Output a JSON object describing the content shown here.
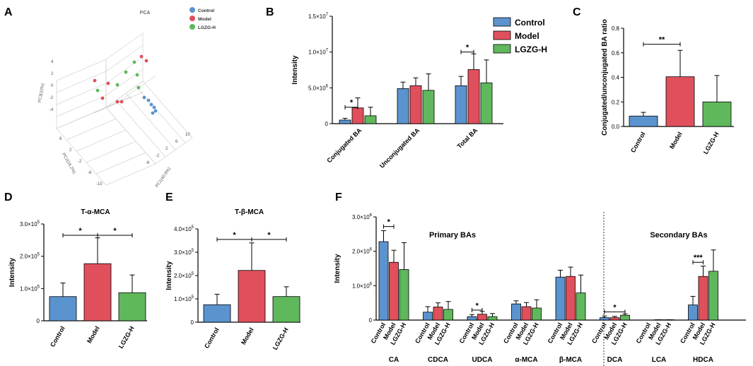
{
  "colors": {
    "control": "#5b93cf",
    "model": "#e0505c",
    "lgzg": "#5fb85c"
  },
  "panels": {
    "a": {
      "letter": "A"
    },
    "b": {
      "letter": "B"
    },
    "c": {
      "letter": "C"
    },
    "d": {
      "letter": "D"
    },
    "e": {
      "letter": "E"
    },
    "f": {
      "letter": "F"
    }
  },
  "pca": {
    "title": "PCA",
    "legend": [
      "Control",
      "Model",
      "LGZG-H"
    ],
    "axis_labels": [
      "PC3(10%)",
      "PC2(16.2%)",
      "PC1(40.9%)"
    ],
    "tick_labels": [
      "4",
      "2",
      "0",
      "-2",
      "-4",
      "6",
      "2",
      "-2",
      "-6",
      "-10",
      "-6",
      "-2",
      "2",
      "6",
      "10"
    ]
  },
  "chart_data": [
    {
      "id": "B",
      "type": "bar",
      "ylabel": "Intensity",
      "ylim": [
        0,
        15000000
      ],
      "yticks": [
        {
          "v": 0,
          "m": "0",
          "e": ""
        },
        {
          "v": 5000000,
          "m": "5.0×10",
          "e": "6"
        },
        {
          "v": 10000000,
          "m": "1.0×10",
          "e": "7"
        },
        {
          "v": 15000000,
          "m": "1.5×10",
          "e": "7"
        }
      ],
      "legend": [
        "Control",
        "Model",
        "LGZG-H"
      ],
      "groups": [
        {
          "label": "Conjugated BA",
          "mean": [
            500000,
            2200000,
            1100000
          ],
          "err": [
            250000,
            1400000,
            1200000
          ]
        },
        {
          "label": "Unconjugated BA",
          "mean": [
            4900000,
            5300000,
            4650000
          ],
          "err": [
            900000,
            1100000,
            2300000
          ]
        },
        {
          "label": "Total BA",
          "mean": [
            5300000,
            7550000,
            5700000
          ],
          "err": [
            1300000,
            2200000,
            3200000
          ]
        }
      ],
      "sig": [
        {
          "group": 0,
          "from": 0,
          "to": 1,
          "level": 2300000,
          "label": "*"
        },
        {
          "group": 2,
          "from": 0,
          "to": 1,
          "level": 10000000,
          "label": "*"
        }
      ]
    },
    {
      "id": "C",
      "type": "bar",
      "ylabel": "Conjugated/unconjugated BA ratio",
      "ylim": [
        0,
        0.8
      ],
      "yticks": [
        {
          "v": 0,
          "m": "0.0",
          "e": ""
        },
        {
          "v": 0.2,
          "m": "0.2",
          "e": ""
        },
        {
          "v": 0.4,
          "m": "0.4",
          "e": ""
        },
        {
          "v": 0.6,
          "m": "0.6",
          "e": ""
        },
        {
          "v": 0.8,
          "m": "0.8",
          "e": ""
        }
      ],
      "categories": [
        "Control",
        "Model",
        "LGZG-H"
      ],
      "mean": [
        0.085,
        0.405,
        0.2
      ],
      "err": [
        0.03,
        0.215,
        0.215
      ],
      "sig": [
        {
          "from": 0,
          "to": 1,
          "level": 0.67,
          "label": "**"
        }
      ]
    },
    {
      "id": "D",
      "type": "bar",
      "title": "T-α-MCA",
      "ylabel": "Intensity",
      "ylim": [
        0,
        300000
      ],
      "yticks": [
        {
          "v": 0,
          "m": "0",
          "e": ""
        },
        {
          "v": 100000,
          "m": "1.0×10",
          "e": "5"
        },
        {
          "v": 200000,
          "m": "2.0×10",
          "e": "5"
        },
        {
          "v": 300000,
          "m": "3.0×10",
          "e": "5"
        }
      ],
      "categories": [
        "Control",
        "Model",
        "LGZG-H"
      ],
      "mean": [
        75000,
        177000,
        87000
      ],
      "err": [
        42000,
        80000,
        55000
      ],
      "sig": [
        {
          "from": 0,
          "to": 1,
          "level": 265000,
          "label": "*"
        },
        {
          "from": 1,
          "to": 2,
          "level": 265000,
          "label": "*"
        }
      ]
    },
    {
      "id": "E",
      "type": "bar",
      "title": "T-β-MCA",
      "ylabel": "Intensity",
      "ylim": [
        0,
        400000
      ],
      "yticks": [
        {
          "v": 0,
          "m": "0",
          "e": ""
        },
        {
          "v": 100000,
          "m": "1.0×10",
          "e": "5"
        },
        {
          "v": 200000,
          "m": "2.0×10",
          "e": "5"
        },
        {
          "v": 300000,
          "m": "3.0×10",
          "e": "5"
        },
        {
          "v": 400000,
          "m": "4.0×10",
          "e": "5"
        }
      ],
      "categories": [
        "Control",
        "Model",
        "LGZG-H"
      ],
      "mean": [
        75000,
        222000,
        110000
      ],
      "err": [
        45000,
        118000,
        42000
      ],
      "sig": [
        {
          "from": 0,
          "to": 1,
          "level": 355000,
          "label": "*"
        },
        {
          "from": 1,
          "to": 2,
          "level": 355000,
          "label": "*"
        }
      ]
    },
    {
      "id": "F",
      "type": "bar",
      "ylabel": "Intensity",
      "ylim": [
        0,
        3000000
      ],
      "yticks": [
        {
          "v": 0,
          "m": "0",
          "e": ""
        },
        {
          "v": 1000000,
          "m": "1.0×10",
          "e": "6"
        },
        {
          "v": 2000000,
          "m": "2.0×10",
          "e": "6"
        },
        {
          "v": 3000000,
          "m": "3.0×10",
          "e": "6"
        }
      ],
      "sublabels": [
        "Control",
        "Model",
        "LGZG-H"
      ],
      "annotations": [
        "Primary BAs",
        "Secondary BAs"
      ],
      "groups": [
        {
          "label": "CA",
          "mean": [
            2280000,
            1680000,
            1470000
          ],
          "err": [
            320000,
            350000,
            780000
          ]
        },
        {
          "label": "CDCA",
          "mean": [
            230000,
            380000,
            310000
          ],
          "err": [
            160000,
            120000,
            230000
          ]
        },
        {
          "label": "UDCA",
          "mean": [
            100000,
            170000,
            100000
          ],
          "err": [
            60000,
            80000,
            90000
          ]
        },
        {
          "label": "α-MCA",
          "mean": [
            470000,
            390000,
            350000
          ],
          "err": [
            90000,
            120000,
            240000
          ]
        },
        {
          "label": "β-MCA",
          "mean": [
            1250000,
            1270000,
            790000
          ],
          "err": [
            200000,
            270000,
            520000
          ]
        },
        {
          "label": "DCA",
          "mean": [
            70000,
            70000,
            140000
          ],
          "err": [
            50000,
            40000,
            40000
          ]
        },
        {
          "label": "LCA",
          "mean": [
            0,
            10000,
            10000
          ],
          "err": [
            0,
            0,
            0
          ]
        },
        {
          "label": "HDCA",
          "mean": [
            440000,
            1270000,
            1420000
          ],
          "err": [
            250000,
            300000,
            620000
          ]
        }
      ],
      "sig": [
        {
          "group": 0,
          "from": 0,
          "to": 1,
          "level": 2720000,
          "label": "*"
        },
        {
          "group": 2,
          "from": 0,
          "to": 1,
          "level": 290000,
          "label": "*"
        },
        {
          "group": 5,
          "from": 0,
          "to": 2,
          "level": 240000,
          "label": "*"
        },
        {
          "group": 7,
          "from": 0,
          "to": 1,
          "level": 1680000,
          "label": "***"
        }
      ]
    }
  ]
}
